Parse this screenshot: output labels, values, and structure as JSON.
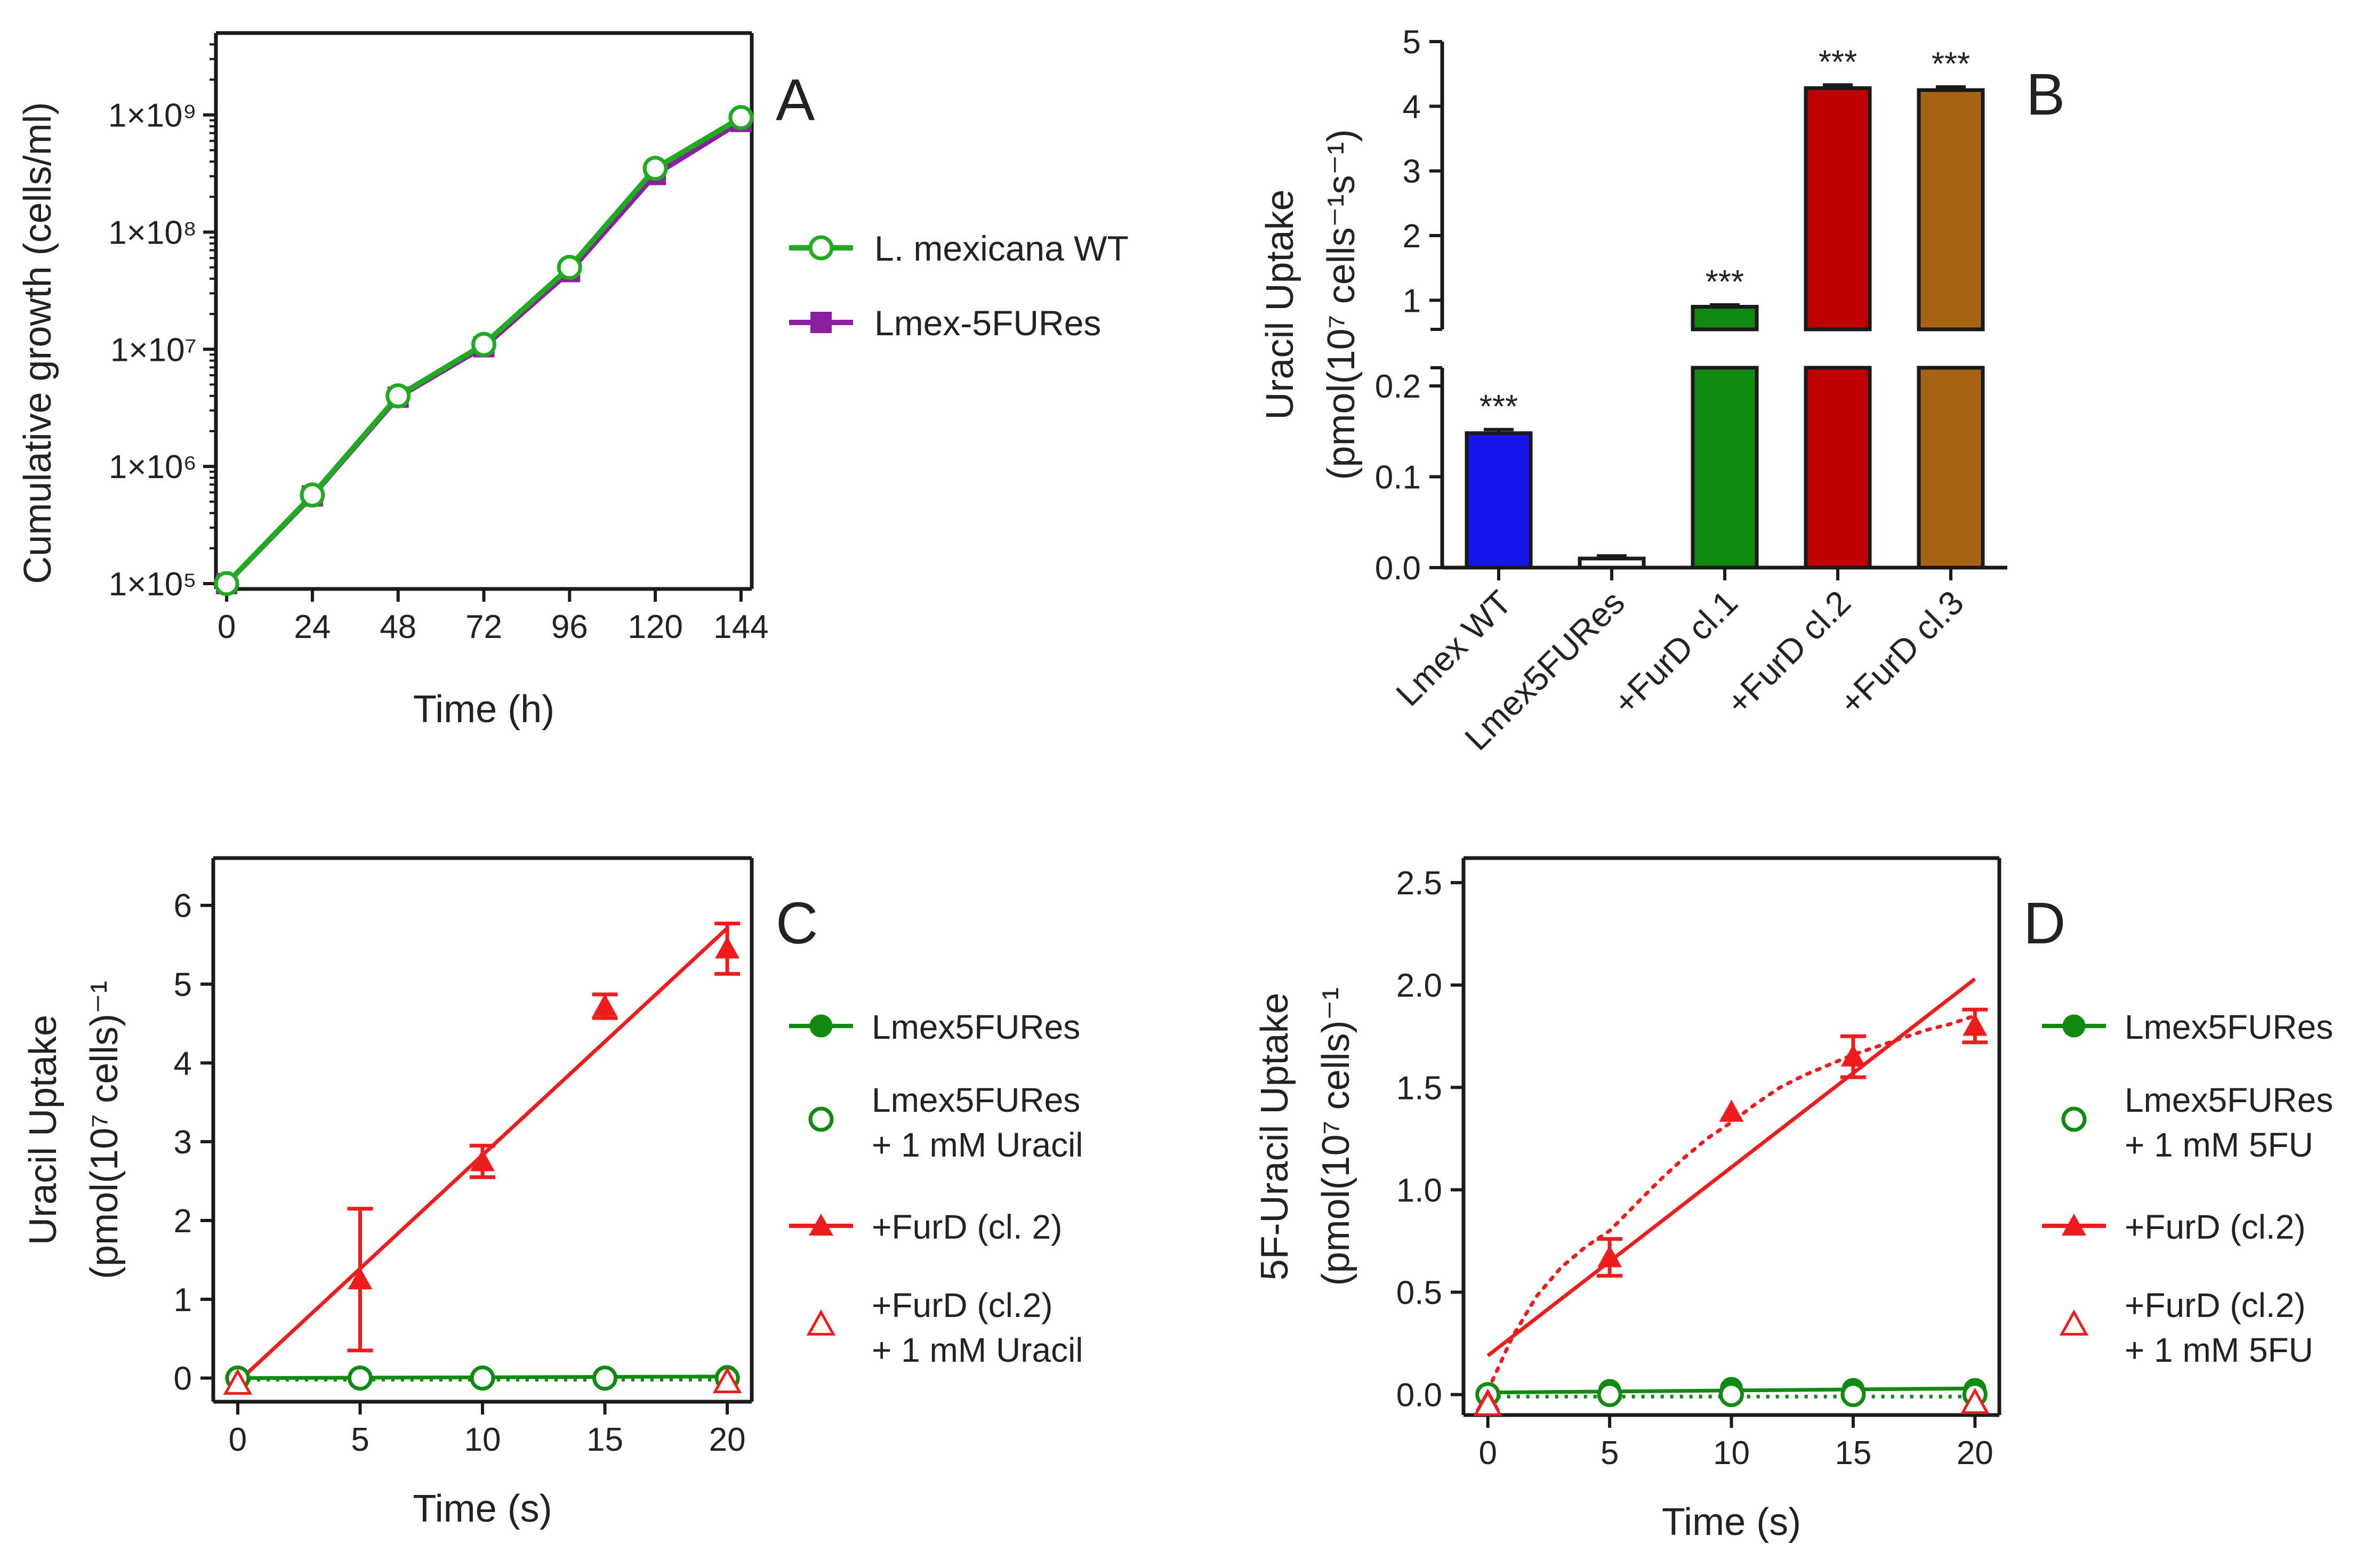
{
  "colors": {
    "axis": "#1a1a1a",
    "green": "#1faa1f",
    "green_dark": "#108a10",
    "purple": "#8a1fa0",
    "red": "#ee1c1c",
    "blue": "#1616f0",
    "darkgreen": "#128a12",
    "darkred": "#c00000",
    "brown": "#a86414"
  },
  "chart_data": [
    {
      "panel": "A",
      "type": "line",
      "title": "",
      "xlabel": "Time (h)",
      "ylabel": "Cumulative growth (cells/ml)",
      "yscale": "log",
      "ylim": [
        90000,
        5000000000
      ],
      "xlim": [
        -3,
        147
      ],
      "x_ticks": [
        0,
        24,
        48,
        72,
        96,
        120,
        144
      ],
      "y_ticks": [
        100000,
        1000000,
        10000000,
        100000000,
        1000000000
      ],
      "y_tick_labels": [
        "1×10⁵",
        "1×10⁶",
        "1×10⁷",
        "1×10⁸",
        "1×10⁹"
      ],
      "series": [
        {
          "name": "L. mexicana WT",
          "marker": "open-circle",
          "color": "#1faa1f",
          "x": [
            0,
            24,
            48,
            72,
            96,
            120,
            144
          ],
          "y": [
            100000,
            570000,
            4000000,
            11000000,
            50000000,
            350000000,
            950000000
          ]
        },
        {
          "name": "Lmex-5FURes",
          "marker": "filled-square",
          "color": "#8a1fa0",
          "x": [
            0,
            24,
            48,
            72,
            96,
            120,
            144
          ],
          "y": [
            100000,
            560000,
            3900000,
            10500000,
            46000000,
            310000000,
            880000000
          ]
        }
      ]
    },
    {
      "panel": "B",
      "type": "bar",
      "xlabel": "",
      "ylabel_line1": "Uracil Uptake",
      "ylabel_line2": "(pmol(10⁷ cells⁻¹s⁻¹)",
      "broken_axis": true,
      "lower_ylim": [
        0,
        0.22
      ],
      "upper_ylim": [
        0.55,
        5
      ],
      "lower_ticks": [
        0.0,
        0.1,
        0.2
      ],
      "lower_tick_labels": [
        "0.0",
        "0.1",
        "0.2"
      ],
      "upper_ticks": [
        1,
        2,
        3,
        4,
        5
      ],
      "upper_tick_labels": [
        "1",
        "2",
        "3",
        "4",
        "5"
      ],
      "categories": [
        "Lmex WT",
        "Lmex5FURes",
        "+FurD cl.1",
        "+FurD cl.2",
        "+FurD cl.3"
      ],
      "values": [
        0.148,
        0.01,
        0.9,
        4.28,
        4.25
      ],
      "errors": [
        0.004,
        0.003,
        0.03,
        0.05,
        0.05
      ],
      "bar_colors": [
        "#1616f0",
        "#ffffff",
        "#128a12",
        "#c00000",
        "#a86414"
      ],
      "significance": [
        "***",
        "",
        "***",
        "***",
        "***"
      ]
    },
    {
      "panel": "C",
      "type": "line",
      "xlabel": "Time (s)",
      "ylabel_line1": "Uracil Uptake",
      "ylabel_line2": "(pmol(10⁷ cells)⁻¹",
      "xlim": [
        -1,
        21
      ],
      "ylim": [
        -0.3,
        6.6
      ],
      "x_ticks": [
        0,
        5,
        10,
        15,
        20
      ],
      "y_ticks": [
        0,
        1,
        2,
        3,
        4,
        5,
        6
      ],
      "series": [
        {
          "name": "Lmex5FURes",
          "marker": "filled-circle",
          "color": "#108a10",
          "x": [
            0,
            5,
            10,
            15,
            20
          ],
          "y": [
            0.0,
            0.0,
            0.0,
            0.01,
            0.02
          ],
          "errors": [
            0,
            0,
            0,
            0,
            0
          ],
          "fit": {
            "slope": 0.001,
            "intercept": 0.0,
            "style": "solid"
          }
        },
        {
          "name": "Lmex5FURes",
          "name_line2": "+ 1 mM Uracil",
          "marker": "open-circle",
          "color": "#108a10",
          "x": [
            0,
            5,
            10,
            15,
            20
          ],
          "y": [
            0.0,
            0.0,
            0.0,
            0.0,
            0.0
          ],
          "errors": [
            0,
            0,
            0,
            0,
            0
          ],
          "fit": {
            "slope": 0.0,
            "intercept": -0.02,
            "style": "dotted"
          }
        },
        {
          "name": "+FurD (cl. 2)",
          "marker": "filled-triangle",
          "color": "#ee1c1c",
          "x": [
            0,
            5,
            10,
            15,
            20
          ],
          "y": [
            -0.05,
            1.25,
            2.75,
            4.72,
            5.45
          ],
          "errors": [
            0,
            0.9,
            0.2,
            0.15,
            0.32
          ],
          "fit": {
            "slope": 0.288,
            "intercept": -0.05,
            "style": "solid"
          }
        },
        {
          "name": "+FurD (cl.2)",
          "name_line2": "+ 1 mM Uracil",
          "marker": "open-triangle",
          "color": "#ee1c1c",
          "x": [
            0,
            20
          ],
          "y": [
            -0.07,
            -0.05
          ],
          "errors": [
            0,
            0
          ],
          "fit": null
        }
      ]
    },
    {
      "panel": "D",
      "type": "line",
      "xlabel": "Time (s)",
      "ylabel_line1": "5F-Uracil Uptake",
      "ylabel_line2": "(pmol(10⁷ cells)⁻¹",
      "xlim": [
        -1,
        21
      ],
      "ylim": [
        -0.1,
        2.62
      ],
      "x_ticks": [
        0,
        5,
        10,
        15,
        20
      ],
      "y_ticks": [
        0.0,
        0.5,
        1.0,
        1.5,
        2.0,
        2.5
      ],
      "y_tick_labels": [
        "0.0",
        "0.5",
        "1.0",
        "1.5",
        "2.0",
        "2.5"
      ],
      "series": [
        {
          "name": "Lmex5FURes",
          "marker": "filled-circle",
          "color": "#108a10",
          "x": [
            0,
            5,
            10,
            15,
            20
          ],
          "y": [
            0.0,
            0.02,
            0.03,
            0.025,
            0.025
          ],
          "errors": [
            0,
            0,
            0,
            0,
            0
          ],
          "fit": {
            "slope": 0.001,
            "intercept": 0.01,
            "style": "solid"
          }
        },
        {
          "name": "Lmex5FURes",
          "name_line2": "+ 1 mM 5FU",
          "marker": "open-circle",
          "color": "#108a10",
          "x": [
            0,
            5,
            10,
            15,
            20
          ],
          "y": [
            0.0,
            0.0,
            0.0,
            0.0,
            0.0
          ],
          "errors": [
            0,
            0,
            0,
            0,
            0
          ],
          "fit": {
            "slope": 0.0,
            "intercept": -0.01,
            "style": "dotted"
          }
        },
        {
          "name": "+FurD (cl.2)",
          "marker": "filled-triangle",
          "color": "#ee1c1c",
          "x": [
            0,
            5,
            10,
            15,
            20
          ],
          "y": [
            -0.03,
            0.67,
            1.38,
            1.65,
            1.8
          ],
          "errors": [
            0,
            0.09,
            0,
            0.1,
            0.08
          ],
          "fit": {
            "slope": 0.092,
            "intercept": 0.19,
            "style": "solid"
          },
          "curve_fit": {
            "x": [
              0,
              1,
              2,
              3,
              4,
              5,
              6,
              7,
              8,
              9,
              10,
              11,
              12,
              13,
              14,
              15,
              16,
              17,
              18,
              19,
              20
            ],
            "y": [
              0.02,
              0.28,
              0.48,
              0.62,
              0.72,
              0.8,
              0.92,
              1.04,
              1.15,
              1.25,
              1.33,
              1.42,
              1.5,
              1.56,
              1.61,
              1.66,
              1.7,
              1.74,
              1.78,
              1.81,
              1.85
            ],
            "style": "dotted"
          }
        },
        {
          "name": "+FurD (cl.2)",
          "name_line2": "+ 1 mM 5FU",
          "marker": "open-triangle",
          "color": "#ee1c1c",
          "x": [
            0,
            20
          ],
          "y": [
            -0.05,
            -0.04
          ],
          "errors": [
            0,
            0
          ],
          "fit": null
        }
      ]
    }
  ]
}
